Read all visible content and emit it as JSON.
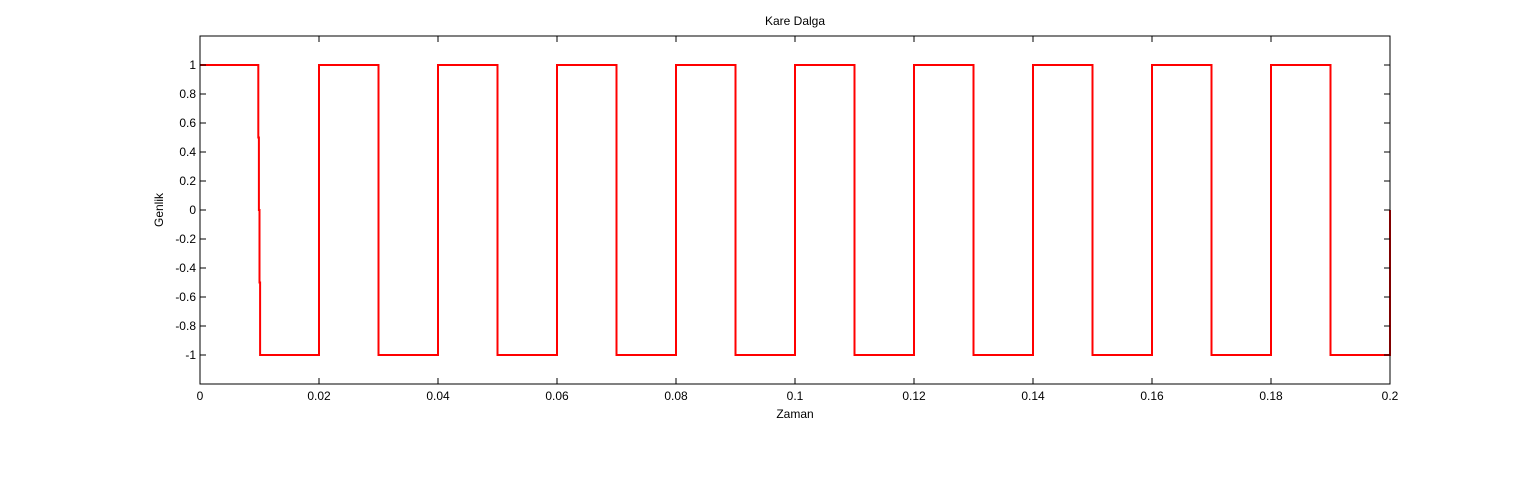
{
  "chart_data": {
    "type": "line",
    "title": "Kare Dalga",
    "xlabel": "Zaman",
    "ylabel": "Genlik",
    "xlim": [
      0,
      0.2
    ],
    "ylim": [
      -1.2,
      1.2
    ],
    "x_ticks": [
      0,
      0.02,
      0.04,
      0.06,
      0.08,
      0.1,
      0.12,
      0.14,
      0.16,
      0.18,
      0.2
    ],
    "x_tick_labels": [
      "0",
      "0.02",
      "0.04",
      "0.06",
      "0.08",
      "0.1",
      "0.12",
      "0.14",
      "0.16",
      "0.18",
      "0.2"
    ],
    "y_ticks": [
      1,
      0.8,
      0.6,
      0.4,
      0.2,
      0,
      -0.2,
      -0.4,
      -0.6,
      -0.8,
      -1
    ],
    "y_tick_labels": [
      "1",
      "0.8",
      "0.6",
      "0.4",
      "0.2",
      "0",
      "-0.2",
      "-0.4",
      "-0.6",
      "-0.8",
      "-1"
    ],
    "grid": false,
    "series": [
      {
        "color": "#ff0000",
        "x": [
          0,
          0.0098,
          0.0098,
          0.0099,
          0.0099,
          0.01,
          0.01,
          0.0101,
          0.0101,
          0.02,
          0.02,
          0.03,
          0.03,
          0.04,
          0.04,
          0.05,
          0.05,
          0.06,
          0.06,
          0.07,
          0.07,
          0.08,
          0.08,
          0.09,
          0.09,
          0.1,
          0.1,
          0.11,
          0.11,
          0.12,
          0.12,
          0.13,
          0.13,
          0.14,
          0.14,
          0.15,
          0.15,
          0.16,
          0.16,
          0.17,
          0.17,
          0.18,
          0.18,
          0.19,
          0.19,
          0.2,
          0.2
        ],
        "y": [
          1,
          1,
          0.5,
          0.5,
          0,
          0,
          -0.5,
          -0.5,
          -1,
          -1,
          1,
          1,
          -1,
          -1,
          1,
          1,
          -1,
          -1,
          1,
          1,
          -1,
          -1,
          1,
          1,
          -1,
          -1,
          1,
          1,
          -1,
          -1,
          1,
          1,
          -1,
          -1,
          1,
          1,
          -1,
          -1,
          1,
          1,
          -1,
          -1,
          1,
          1,
          -1,
          -1,
          0
        ]
      }
    ]
  }
}
